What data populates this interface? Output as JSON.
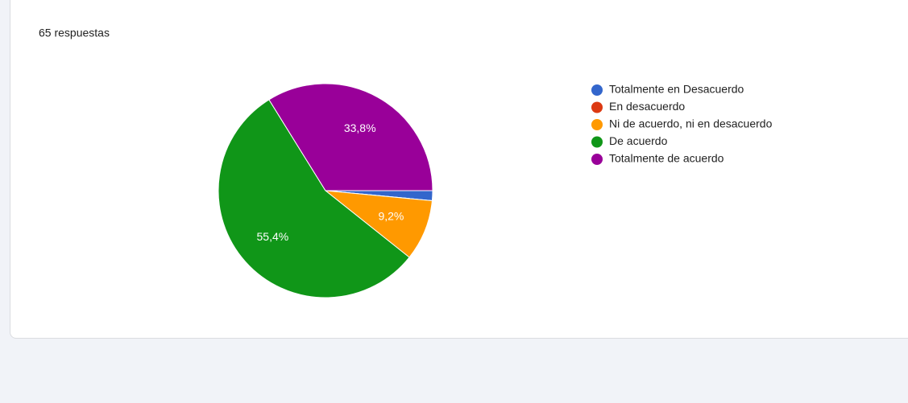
{
  "chart_data": {
    "type": "pie",
    "subtitle": "65 respuestas",
    "categories": [
      "Totalmente en Desacuerdo",
      "En desacuerdo",
      "Ni de acuerdo, ni en desacuerdo",
      "De acuerdo",
      "Totalmente de acuerdo"
    ],
    "values": [
      1.5,
      0,
      9.2,
      55.4,
      33.8
    ],
    "value_labels": [
      null,
      null,
      "9,2%",
      "55,4%",
      "33,8%"
    ],
    "colors": [
      "#3366cc",
      "#dc3912",
      "#ff9900",
      "#109618",
      "#990099"
    ],
    "legend": "right"
  }
}
